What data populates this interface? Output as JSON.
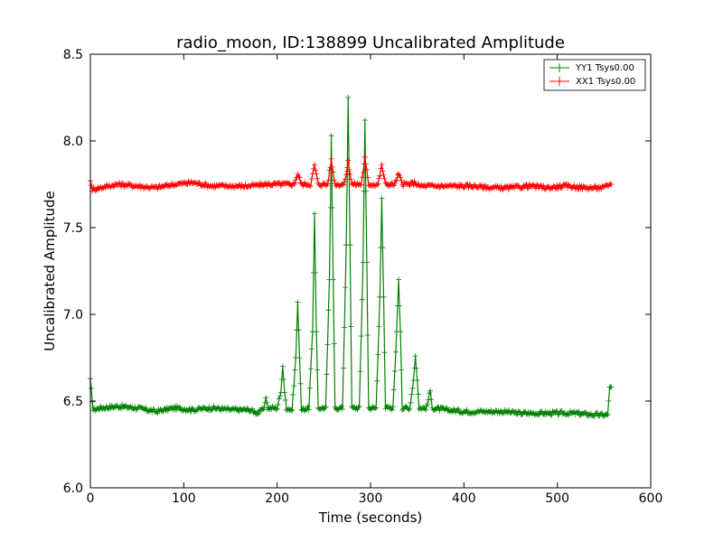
{
  "chart_data": {
    "type": "line",
    "title": "radio_moon, ID:138899 Uncalibrated Amplitude",
    "xlabel": "Time (seconds)",
    "ylabel": "Uncalibrated Amplitude",
    "xlim": [
      0,
      600
    ],
    "ylim": [
      6.0,
      8.5
    ],
    "xticks": [
      0,
      100,
      200,
      300,
      400,
      500,
      600
    ],
    "xtick_labels": [
      "0",
      "100",
      "200",
      "300",
      "400",
      "500",
      "600"
    ],
    "yticks": [
      6.0,
      6.5,
      7.0,
      7.5,
      8.0,
      8.5
    ],
    "ytick_labels": [
      "6.0",
      "6.5",
      "7.0",
      "7.5",
      "8.0",
      "8.5"
    ],
    "grid": false,
    "legend_position": "top-right",
    "series": [
      {
        "name": "YY1 Tsys0.00",
        "color": "#008000",
        "marker": "+",
        "points": [
          [
            0,
            6.62
          ],
          [
            3,
            6.45
          ],
          [
            10,
            6.46
          ],
          [
            30,
            6.47
          ],
          [
            50,
            6.46
          ],
          [
            70,
            6.44
          ],
          [
            90,
            6.46
          ],
          [
            110,
            6.45
          ],
          [
            130,
            6.46
          ],
          [
            150,
            6.45
          ],
          [
            170,
            6.45
          ],
          [
            180,
            6.43
          ],
          [
            186,
            6.46
          ],
          [
            188,
            6.52
          ],
          [
            190,
            6.46
          ],
          [
            200,
            6.46
          ],
          [
            204,
            6.55
          ],
          [
            206,
            6.7
          ],
          [
            208,
            6.55
          ],
          [
            210,
            6.46
          ],
          [
            216,
            6.45
          ],
          [
            220,
            6.75
          ],
          [
            222,
            7.07
          ],
          [
            224,
            6.75
          ],
          [
            226,
            6.45
          ],
          [
            234,
            6.46
          ],
          [
            238,
            6.9
          ],
          [
            240,
            7.58
          ],
          [
            242,
            6.9
          ],
          [
            244,
            6.46
          ],
          [
            252,
            6.46
          ],
          [
            256,
            7.2
          ],
          [
            258,
            8.03
          ],
          [
            260,
            7.2
          ],
          [
            262,
            6.46
          ],
          [
            270,
            6.46
          ],
          [
            274,
            7.4
          ],
          [
            276,
            8.25
          ],
          [
            278,
            7.4
          ],
          [
            280,
            6.46
          ],
          [
            288,
            6.46
          ],
          [
            292,
            7.3
          ],
          [
            294,
            8.12
          ],
          [
            296,
            7.3
          ],
          [
            298,
            6.46
          ],
          [
            306,
            6.46
          ],
          [
            310,
            7.1
          ],
          [
            312,
            7.67
          ],
          [
            314,
            7.1
          ],
          [
            316,
            6.46
          ],
          [
            324,
            6.46
          ],
          [
            328,
            6.9
          ],
          [
            330,
            7.2
          ],
          [
            332,
            6.9
          ],
          [
            334,
            6.46
          ],
          [
            342,
            6.46
          ],
          [
            346,
            6.62
          ],
          [
            348,
            6.76
          ],
          [
            350,
            6.62
          ],
          [
            352,
            6.46
          ],
          [
            360,
            6.46
          ],
          [
            364,
            6.56
          ],
          [
            366,
            6.46
          ],
          [
            380,
            6.45
          ],
          [
            400,
            6.44
          ],
          [
            420,
            6.44
          ],
          [
            440,
            6.44
          ],
          [
            460,
            6.43
          ],
          [
            480,
            6.43
          ],
          [
            500,
            6.43
          ],
          [
            520,
            6.43
          ],
          [
            540,
            6.42
          ],
          [
            554,
            6.42
          ],
          [
            556,
            6.58
          ],
          [
            558,
            6.58
          ]
        ]
      },
      {
        "name": "XX1 Tsys0.00",
        "color": "#ff0000",
        "marker": "+",
        "points": [
          [
            0,
            7.77
          ],
          [
            2,
            7.72
          ],
          [
            10,
            7.73
          ],
          [
            30,
            7.75
          ],
          [
            50,
            7.74
          ],
          [
            70,
            7.73
          ],
          [
            90,
            7.75
          ],
          [
            110,
            7.76
          ],
          [
            130,
            7.74
          ],
          [
            150,
            7.74
          ],
          [
            170,
            7.74
          ],
          [
            190,
            7.75
          ],
          [
            210,
            7.75
          ],
          [
            218,
            7.75
          ],
          [
            222,
            7.81
          ],
          [
            226,
            7.75
          ],
          [
            236,
            7.75
          ],
          [
            240,
            7.86
          ],
          [
            244,
            7.75
          ],
          [
            254,
            7.75
          ],
          [
            258,
            7.89
          ],
          [
            262,
            7.75
          ],
          [
            272,
            7.75
          ],
          [
            276,
            7.88
          ],
          [
            280,
            7.75
          ],
          [
            290,
            7.75
          ],
          [
            294,
            7.9
          ],
          [
            298,
            7.75
          ],
          [
            308,
            7.75
          ],
          [
            312,
            7.86
          ],
          [
            316,
            7.75
          ],
          [
            326,
            7.75
          ],
          [
            330,
            7.81
          ],
          [
            334,
            7.75
          ],
          [
            342,
            7.75
          ],
          [
            348,
            7.76
          ],
          [
            352,
            7.74
          ],
          [
            370,
            7.74
          ],
          [
            390,
            7.74
          ],
          [
            410,
            7.74
          ],
          [
            430,
            7.73
          ],
          [
            450,
            7.73
          ],
          [
            470,
            7.74
          ],
          [
            490,
            7.73
          ],
          [
            510,
            7.74
          ],
          [
            530,
            7.73
          ],
          [
            550,
            7.73
          ],
          [
            556,
            7.75
          ],
          [
            558,
            7.75
          ]
        ]
      }
    ]
  }
}
